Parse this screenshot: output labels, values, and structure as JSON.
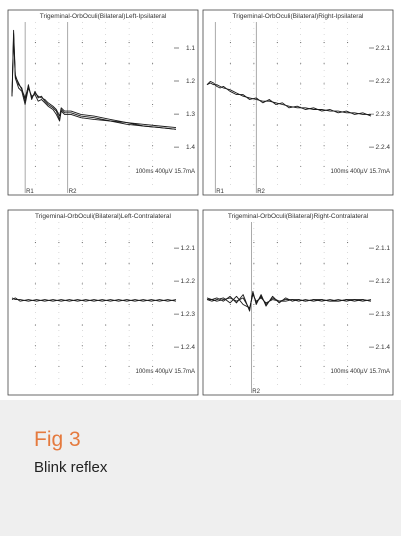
{
  "caption": {
    "label": "Fig 3",
    "description": "Blink reflex"
  },
  "colors": {
    "caption_label": "#e57a3e",
    "caption_background": "#efefef",
    "trace": "#1a1a1a",
    "grid": "#555555"
  },
  "chart_data": [
    {
      "type": "line",
      "title": "Trigeminal-OrbOculi(Bilateral)Left-Ipsilateral",
      "channel_labels": [
        "1.1",
        "1.2",
        "1.3",
        "1.4"
      ],
      "scale_label": "100ms 400µV 15.7mA",
      "markers": [
        {
          "label": "R1",
          "t": 0.08
        },
        {
          "label": "R2",
          "t": 0.34
        }
      ],
      "grid": true,
      "series": [
        {
          "values": [
            [
              0,
              0.55
            ],
            [
              0.01,
              0.95
            ],
            [
              0.02,
              0.68
            ],
            [
              0.04,
              0.62
            ],
            [
              0.06,
              0.6
            ],
            [
              0.08,
              0.52
            ],
            [
              0.1,
              0.62
            ],
            [
              0.12,
              0.53
            ],
            [
              0.14,
              0.58
            ],
            [
              0.16,
              0.54
            ],
            [
              0.18,
              0.55
            ],
            [
              0.2,
              0.52
            ],
            [
              0.22,
              0.5
            ],
            [
              0.25,
              0.48
            ],
            [
              0.27,
              0.46
            ],
            [
              0.29,
              0.41
            ],
            [
              0.3,
              0.47
            ],
            [
              0.32,
              0.45
            ],
            [
              0.36,
              0.45
            ],
            [
              0.42,
              0.43
            ],
            [
              0.5,
              0.42
            ],
            [
              0.6,
              0.4
            ],
            [
              0.7,
              0.39
            ],
            [
              0.8,
              0.37
            ],
            [
              0.9,
              0.36
            ],
            [
              1.0,
              0.35
            ]
          ]
        },
        {
          "values": [
            [
              0,
              0.55
            ],
            [
              0.01,
              0.93
            ],
            [
              0.02,
              0.66
            ],
            [
              0.04,
              0.6
            ],
            [
              0.06,
              0.58
            ],
            [
              0.08,
              0.5
            ],
            [
              0.1,
              0.6
            ],
            [
              0.12,
              0.55
            ],
            [
              0.14,
              0.56
            ],
            [
              0.16,
              0.52
            ],
            [
              0.18,
              0.53
            ],
            [
              0.2,
              0.51
            ],
            [
              0.22,
              0.49
            ],
            [
              0.25,
              0.47
            ],
            [
              0.27,
              0.44
            ],
            [
              0.29,
              0.4
            ],
            [
              0.3,
              0.46
            ],
            [
              0.32,
              0.44
            ],
            [
              0.36,
              0.44
            ],
            [
              0.42,
              0.42
            ],
            [
              0.5,
              0.41
            ],
            [
              0.6,
              0.4
            ],
            [
              0.7,
              0.38
            ],
            [
              0.8,
              0.37
            ],
            [
              0.9,
              0.36
            ],
            [
              1.0,
              0.35
            ]
          ]
        },
        {
          "values": [
            [
              0,
              0.55
            ],
            [
              0.01,
              0.9
            ],
            [
              0.02,
              0.67
            ],
            [
              0.04,
              0.63
            ],
            [
              0.06,
              0.59
            ],
            [
              0.08,
              0.54
            ],
            [
              0.1,
              0.61
            ],
            [
              0.12,
              0.54
            ],
            [
              0.14,
              0.57
            ],
            [
              0.16,
              0.55
            ],
            [
              0.18,
              0.54
            ],
            [
              0.2,
              0.53
            ],
            [
              0.22,
              0.51
            ],
            [
              0.25,
              0.49
            ],
            [
              0.27,
              0.47
            ],
            [
              0.29,
              0.43
            ],
            [
              0.3,
              0.48
            ],
            [
              0.32,
              0.46
            ],
            [
              0.36,
              0.46
            ],
            [
              0.42,
              0.44
            ],
            [
              0.5,
              0.43
            ],
            [
              0.6,
              0.41
            ],
            [
              0.7,
              0.39
            ],
            [
              0.8,
              0.38
            ],
            [
              0.9,
              0.37
            ],
            [
              1.0,
              0.36
            ]
          ]
        }
      ]
    },
    {
      "type": "line",
      "title": "Trigeminal-OrbOculi(Bilateral)Right-Ipsilateral",
      "channel_labels": [
        "2.2.1",
        "2.2.2",
        "2.2.3",
        "2.2.4"
      ],
      "scale_label": "100ms 400µV 15.7mA",
      "markers": [
        {
          "label": "R1",
          "t": 0.05
        },
        {
          "label": "R2",
          "t": 0.3
        }
      ],
      "grid": true,
      "series": [
        {
          "values": [
            [
              0,
              0.62
            ],
            [
              0.02,
              0.63
            ],
            [
              0.04,
              0.62
            ],
            [
              0.06,
              0.62
            ],
            [
              0.08,
              0.61
            ],
            [
              0.1,
              0.6
            ],
            [
              0.14,
              0.59
            ],
            [
              0.18,
              0.57
            ],
            [
              0.22,
              0.55
            ],
            [
              0.26,
              0.54
            ],
            [
              0.3,
              0.53
            ],
            [
              0.34,
              0.52
            ],
            [
              0.38,
              0.52
            ],
            [
              0.42,
              0.51
            ],
            [
              0.46,
              0.5
            ],
            [
              0.5,
              0.49
            ],
            [
              0.55,
              0.48
            ],
            [
              0.6,
              0.48
            ],
            [
              0.65,
              0.47
            ],
            [
              0.7,
              0.47
            ],
            [
              0.75,
              0.46
            ],
            [
              0.8,
              0.46
            ],
            [
              0.85,
              0.45
            ],
            [
              0.9,
              0.45
            ],
            [
              0.95,
              0.44
            ],
            [
              1.0,
              0.44
            ]
          ]
        },
        {
          "values": [
            [
              0,
              0.62
            ],
            [
              0.02,
              0.64
            ],
            [
              0.04,
              0.63
            ],
            [
              0.06,
              0.61
            ],
            [
              0.08,
              0.6
            ],
            [
              0.1,
              0.61
            ],
            [
              0.14,
              0.58
            ],
            [
              0.18,
              0.56
            ],
            [
              0.22,
              0.56
            ],
            [
              0.26,
              0.53
            ],
            [
              0.3,
              0.54
            ],
            [
              0.34,
              0.51
            ],
            [
              0.38,
              0.53
            ],
            [
              0.42,
              0.5
            ],
            [
              0.46,
              0.51
            ],
            [
              0.5,
              0.48
            ],
            [
              0.55,
              0.49
            ],
            [
              0.6,
              0.47
            ],
            [
              0.65,
              0.48
            ],
            [
              0.7,
              0.46
            ],
            [
              0.75,
              0.47
            ],
            [
              0.8,
              0.45
            ],
            [
              0.85,
              0.46
            ],
            [
              0.9,
              0.44
            ],
            [
              0.95,
              0.45
            ],
            [
              1.0,
              0.43
            ]
          ]
        }
      ]
    },
    {
      "type": "line",
      "title": "Trigeminal-OrbOculi(Bilateral)Left-Contralateral",
      "channel_labels": [
        "1.2.1",
        "1.2.2",
        "1.2.3",
        "1.2.4"
      ],
      "scale_label": "100ms 400µV 15.7mA",
      "markers": [],
      "grid": true,
      "series": [
        {
          "values": [
            [
              0,
              0.53
            ],
            [
              0.02,
              0.54
            ],
            [
              0.05,
              0.52
            ],
            [
              0.1,
              0.53
            ],
            [
              0.15,
              0.52
            ],
            [
              0.2,
              0.53
            ],
            [
              0.25,
              0.52
            ],
            [
              0.3,
              0.53
            ],
            [
              0.35,
              0.52
            ],
            [
              0.4,
              0.53
            ],
            [
              0.45,
              0.52
            ],
            [
              0.5,
              0.53
            ],
            [
              0.55,
              0.52
            ],
            [
              0.6,
              0.53
            ],
            [
              0.65,
              0.52
            ],
            [
              0.7,
              0.53
            ],
            [
              0.75,
              0.52
            ],
            [
              0.8,
              0.53
            ],
            [
              0.85,
              0.52
            ],
            [
              0.9,
              0.53
            ],
            [
              0.95,
              0.52
            ],
            [
              1.0,
              0.53
            ]
          ]
        },
        {
          "values": [
            [
              0,
              0.54
            ],
            [
              0.02,
              0.53
            ],
            [
              0.05,
              0.53
            ],
            [
              0.1,
              0.52
            ],
            [
              0.15,
              0.53
            ],
            [
              0.2,
              0.52
            ],
            [
              0.25,
              0.53
            ],
            [
              0.3,
              0.52
            ],
            [
              0.35,
              0.53
            ],
            [
              0.4,
              0.52
            ],
            [
              0.45,
              0.53
            ],
            [
              0.5,
              0.52
            ],
            [
              0.55,
              0.53
            ],
            [
              0.6,
              0.52
            ],
            [
              0.65,
              0.53
            ],
            [
              0.7,
              0.52
            ],
            [
              0.75,
              0.53
            ],
            [
              0.8,
              0.52
            ],
            [
              0.85,
              0.53
            ],
            [
              0.9,
              0.52
            ],
            [
              0.95,
              0.53
            ],
            [
              1.0,
              0.52
            ]
          ]
        }
      ]
    },
    {
      "type": "line",
      "title": "Trigeminal-OrbOculi(Bilateral)Right-Contralateral",
      "channel_labels": [
        "2.1.1",
        "2.1.2",
        "2.1.3",
        "2.1.4"
      ],
      "scale_label": "100ms 400µV 15.7mA",
      "markers": [
        {
          "label": "R2",
          "t": 0.27
        }
      ],
      "grid": true,
      "series": [
        {
          "values": [
            [
              0,
              0.53
            ],
            [
              0.03,
              0.53
            ],
            [
              0.06,
              0.54
            ],
            [
              0.1,
              0.52
            ],
            [
              0.14,
              0.55
            ],
            [
              0.18,
              0.51
            ],
            [
              0.22,
              0.56
            ],
            [
              0.26,
              0.46
            ],
            [
              0.28,
              0.58
            ],
            [
              0.3,
              0.5
            ],
            [
              0.33,
              0.56
            ],
            [
              0.36,
              0.49
            ],
            [
              0.4,
              0.55
            ],
            [
              0.44,
              0.51
            ],
            [
              0.48,
              0.54
            ],
            [
              0.52,
              0.52
            ],
            [
              0.56,
              0.53
            ],
            [
              0.6,
              0.52
            ],
            [
              0.65,
              0.53
            ],
            [
              0.7,
              0.52
            ],
            [
              0.75,
              0.53
            ],
            [
              0.8,
              0.52
            ],
            [
              0.85,
              0.53
            ],
            [
              0.9,
              0.52
            ],
            [
              0.95,
              0.53
            ],
            [
              1.0,
              0.52
            ]
          ]
        },
        {
          "values": [
            [
              0,
              0.53
            ],
            [
              0.03,
              0.52
            ],
            [
              0.06,
              0.53
            ],
            [
              0.1,
              0.54
            ],
            [
              0.14,
              0.51
            ],
            [
              0.18,
              0.55
            ],
            [
              0.22,
              0.5
            ],
            [
              0.26,
              0.48
            ],
            [
              0.28,
              0.56
            ],
            [
              0.3,
              0.52
            ],
            [
              0.33,
              0.54
            ],
            [
              0.36,
              0.51
            ],
            [
              0.4,
              0.53
            ],
            [
              0.44,
              0.52
            ],
            [
              0.48,
              0.53
            ],
            [
              0.52,
              0.53
            ],
            [
              0.56,
              0.52
            ],
            [
              0.6,
              0.53
            ],
            [
              0.65,
              0.52
            ],
            [
              0.7,
              0.53
            ],
            [
              0.75,
              0.52
            ],
            [
              0.8,
              0.53
            ],
            [
              0.85,
              0.52
            ],
            [
              0.9,
              0.53
            ],
            [
              0.95,
              0.52
            ],
            [
              1.0,
              0.53
            ]
          ]
        },
        {
          "values": [
            [
              0,
              0.54
            ],
            [
              0.03,
              0.53
            ],
            [
              0.06,
              0.52
            ],
            [
              0.1,
              0.53
            ],
            [
              0.14,
              0.54
            ],
            [
              0.18,
              0.52
            ],
            [
              0.22,
              0.54
            ],
            [
              0.26,
              0.47
            ],
            [
              0.28,
              0.57
            ],
            [
              0.3,
              0.51
            ],
            [
              0.33,
              0.55
            ],
            [
              0.36,
              0.5
            ],
            [
              0.4,
              0.54
            ],
            [
              0.44,
              0.52
            ],
            [
              0.48,
              0.52
            ],
            [
              0.52,
              0.53
            ],
            [
              0.56,
              0.53
            ],
            [
              0.6,
              0.52
            ],
            [
              0.65,
              0.53
            ],
            [
              0.7,
              0.53
            ],
            [
              0.75,
              0.52
            ],
            [
              0.8,
              0.52
            ],
            [
              0.85,
              0.53
            ],
            [
              0.9,
              0.53
            ],
            [
              0.95,
              0.53
            ],
            [
              1.0,
              0.52
            ]
          ]
        }
      ]
    }
  ]
}
